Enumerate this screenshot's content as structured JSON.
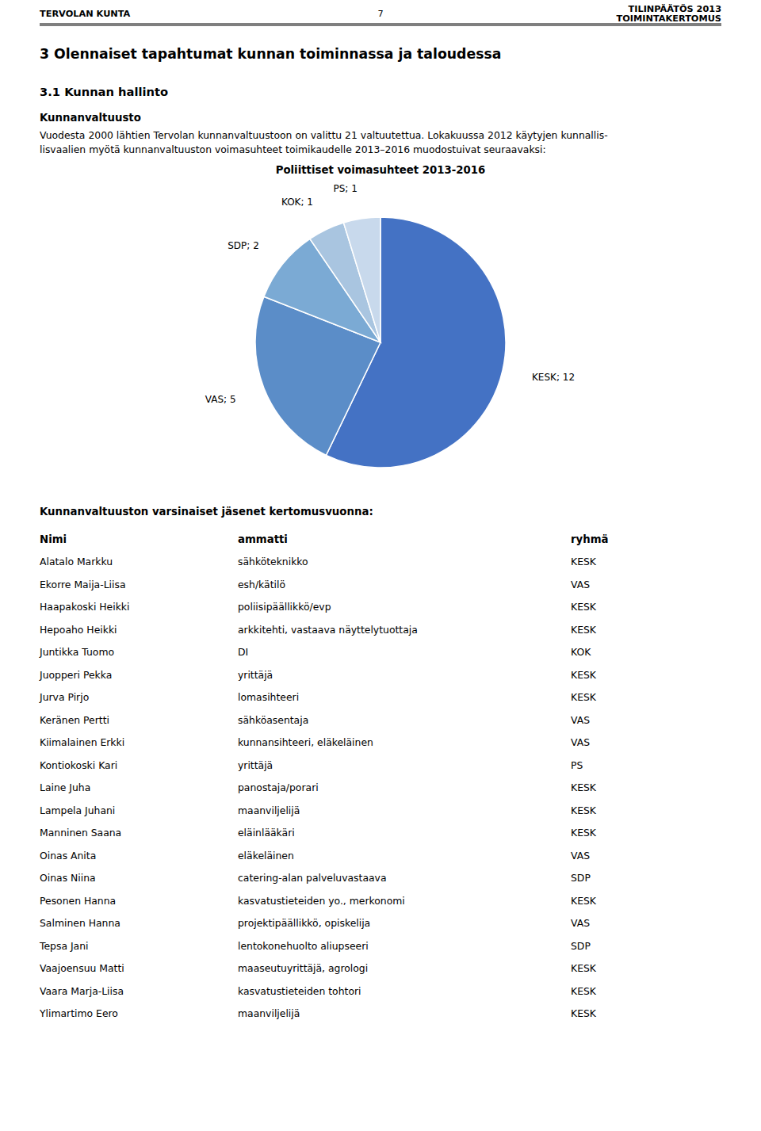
{
  "page": {
    "header_left": "TERVOLAN KUNTA",
    "header_center": "7",
    "header_right_line1": "TILINPÄÄTÖS 2013",
    "header_right_line2": "TOIMINTAKERTOMUS",
    "section_title": "3   Olennaiset tapahtumat kunnan toiminnassa ja taloudessa",
    "subsection_title": "3.1   Kunnan hallinto",
    "body_text1": "Kunnanvaltuusto",
    "body_text2_line1": "Vuodesta 2000 lähtien Tervolan kunnanvaltuustoon on valittu 21 valtuutettua. Lokakuussa 2012 käytyjen kunnallis-",
    "body_text2_line2": "lisvaalien myötä kunnanvaltuuston voimasuhteet toimikaudelle 2013–2016 muodostuivat seuraavaksi:",
    "members_heading": "Kunnanvaltuuston varsinaiset jäsenet kertomusvuonna:",
    "col_headers": [
      "Nimi",
      "ammatti",
      "ryhmä"
    ],
    "members": [
      [
        "Alatalo Markku",
        "sähköteknikko",
        "KESK"
      ],
      [
        "Ekorre Maija-Liisa",
        "esh/kätilö",
        "VAS"
      ],
      [
        "Haapakoski Heikki",
        "poliisipäällikkö/evp",
        "KESK"
      ],
      [
        "Hepoaho Heikki",
        "arkkitehti, vastaava näyttelytuottaja",
        "KESK"
      ],
      [
        "Juntikka Tuomo",
        "DI",
        "KOK"
      ],
      [
        "Juopperi Pekka",
        "yrittäjä",
        "KESK"
      ],
      [
        "Jurva Pirjo",
        "lomasihteeri",
        "KESK"
      ],
      [
        "Keränen Pertti",
        "sähköasentaja",
        "VAS"
      ],
      [
        "Kiimalainen Erkki",
        "kunnansihteeri, eläkeläinen",
        "VAS"
      ],
      [
        "Kontiokoski Kari",
        "yrittäjä",
        "PS"
      ],
      [
        "Laine Juha",
        "panostaja/porari",
        "KESK"
      ],
      [
        "Lampela Juhani",
        "maanviljelijä",
        "KESK"
      ],
      [
        "Manninen Saana",
        "eläinlääkäri",
        "KESK"
      ],
      [
        "Oinas Anita",
        "eläkeläinen",
        "VAS"
      ],
      [
        "Oinas Niina",
        "catering-alan palveluvastaava",
        "SDP"
      ],
      [
        "Pesonen Hanna",
        "kasvatustieteiden yo., merkonomi",
        "KESK"
      ],
      [
        "Salminen Hanna",
        "projektipäällikkö, opiskelija",
        "VAS"
      ],
      [
        "Tepsa Jani",
        "lentokonehuolto aliupseeri",
        "SDP"
      ],
      [
        "Vaajoensuu Matti",
        "maaseutuyrittäjä, agrologi",
        "KESK"
      ],
      [
        "Vaara Marja-Liisa",
        "kasvatustieteiden tohtori",
        "KESK"
      ],
      [
        "Ylimartimo Eero",
        "maanviljelijä",
        "KESK"
      ]
    ]
  },
  "chart_data": {
    "type": "pie",
    "title": "Poliittiset voimasuhteet 2013-2016",
    "categories": [
      "KESK",
      "VAS",
      "SDP",
      "KOK",
      "PS"
    ],
    "values": [
      12,
      5,
      2,
      1,
      1
    ],
    "colors": [
      "#4472C4",
      "#5B8DC8",
      "#7BAAD4",
      "#A9C5E0",
      "#C8D9EC"
    ],
    "data_labels": true,
    "value_labels": [
      "KESK; 12",
      "VAS; 5",
      "SDP; 2",
      "KOK; 1",
      "PS; 1"
    ]
  }
}
